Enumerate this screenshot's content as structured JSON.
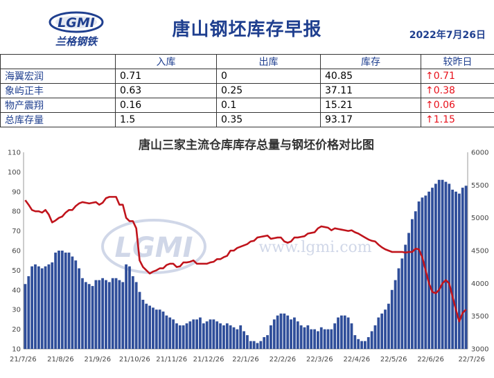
{
  "header": {
    "logo_text": "LGMI",
    "logo_subtitle": "兰格钢铁",
    "title": "唐山钢坯库存早报",
    "date": "2022年7月26日"
  },
  "table": {
    "columns": [
      "",
      "入库",
      "出库",
      "库存",
      "较昨日"
    ],
    "rows": [
      {
        "name": "海翼宏润",
        "in": "0.71",
        "out": "0",
        "stock": "40.85",
        "change": "↑0.71"
      },
      {
        "name": "象屿正丰",
        "in": "0.63",
        "out": "0.25",
        "stock": "37.11",
        "change": "↑0.38"
      },
      {
        "name": "物产震翔",
        "in": "0.16",
        "out": "0.1",
        "stock": "15.21",
        "change": "↑0.06"
      },
      {
        "name": "总库存量",
        "in": "1.5",
        "out": "0.35",
        "stock": "93.17",
        "change": "↑1.15"
      }
    ]
  },
  "watermark": {
    "logo": "LGMI",
    "url": "www.lgmi.com"
  },
  "colors": {
    "bar": "#2f4e9a",
    "line": "#c0141c",
    "title": "#1f3f8f",
    "change": "#e8101a"
  },
  "chart_data": {
    "type": "bar+line",
    "title": "唐山三家主流仓库库存总量与钢坯价格对比图",
    "left_axis": {
      "min": 10,
      "max": 110,
      "ticks": [
        "10",
        "20",
        "30",
        "40",
        "50",
        "60",
        "70",
        "80",
        "90",
        "100",
        "110"
      ]
    },
    "right_axis": {
      "min": 3000,
      "max": 6000,
      "ticks": [
        "3000",
        "3500",
        "4000",
        "4500",
        "5000",
        "5500",
        "6000"
      ]
    },
    "x_labels": [
      "21/7/26",
      "21/8/26",
      "21/9/26",
      "21/10/26",
      "21/11/26",
      "21/12/26",
      "22/1/26",
      "22/2/26",
      "22/3/26",
      "22/4/26",
      "22/5/26",
      "22/6/26",
      "22/7/26"
    ],
    "grid": false,
    "series": [
      {
        "type": "bar",
        "axis": "left",
        "values": [
          43,
          47,
          52,
          53,
          52,
          51,
          52,
          53,
          54,
          59,
          60,
          60,
          59,
          59,
          57,
          55,
          51,
          46,
          44,
          43,
          42,
          45,
          45,
          46,
          45,
          44,
          46,
          46,
          45,
          44,
          53,
          52,
          47,
          44,
          39,
          35,
          33,
          32,
          31,
          30,
          30,
          29,
          27,
          26,
          25,
          23,
          22,
          22,
          23,
          24,
          25,
          25,
          26,
          23,
          24,
          25,
          25,
          24,
          23,
          22,
          23,
          22,
          21,
          20,
          22,
          19,
          17,
          14,
          14,
          13,
          14,
          16,
          17,
          22,
          25,
          27,
          28,
          28,
          27,
          25,
          26,
          24,
          22,
          21,
          22,
          20,
          20,
          19,
          21,
          20,
          20,
          20,
          23,
          26,
          27,
          27,
          26,
          23,
          17,
          15,
          14,
          14,
          16,
          19,
          22,
          26,
          28,
          30,
          33,
          40,
          45,
          51,
          56,
          63,
          69,
          76,
          80,
          85,
          87,
          88,
          90,
          92,
          94,
          96,
          96,
          95,
          94,
          91,
          90,
          89,
          92,
          93
        ]
      },
      {
        "type": "line",
        "axis": "right",
        "values": [
          5270,
          5200,
          5120,
          5100,
          5100,
          5080,
          5120,
          5050,
          4930,
          4960,
          5000,
          5020,
          5080,
          5120,
          5120,
          5180,
          5220,
          5240,
          5230,
          5220,
          5230,
          5240,
          5200,
          5230,
          5300,
          5320,
          5320,
          5320,
          5200,
          5200,
          5000,
          4950,
          4950,
          4840,
          4350,
          4250,
          4200,
          4150,
          4180,
          4200,
          4230,
          4230,
          4280,
          4300,
          4300,
          4250,
          4260,
          4320,
          4320,
          4330,
          4350,
          4300,
          4300,
          4300,
          4300,
          4320,
          4330,
          4370,
          4370,
          4400,
          4420,
          4500,
          4500,
          4540,
          4560,
          4580,
          4600,
          4640,
          4650,
          4700,
          4710,
          4720,
          4730,
          4680,
          4690,
          4700,
          4700,
          4640,
          4620,
          4640,
          4700,
          4700,
          4710,
          4720,
          4760,
          4770,
          4780,
          4840,
          4870,
          4860,
          4850,
          4810,
          4840,
          4830,
          4820,
          4810,
          4800,
          4810,
          4780,
          4760,
          4730,
          4700,
          4670,
          4650,
          4640,
          4590,
          4550,
          4520,
          4500,
          4480,
          4480,
          4480,
          4480,
          4470,
          4480,
          4480,
          4530,
          4520,
          4400,
          4200,
          4000,
          3870,
          3850,
          3900,
          4000,
          4050,
          4000,
          3800,
          3600,
          3420,
          3550,
          3600
        ]
      }
    ]
  }
}
